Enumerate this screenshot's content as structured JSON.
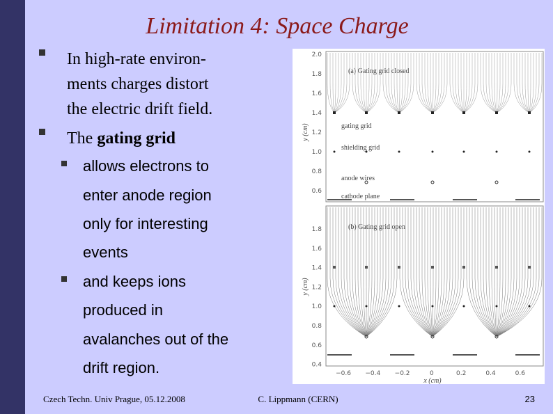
{
  "header": {
    "title": "Limitation 4: Space Charge"
  },
  "bullets": [
    {
      "lines": [
        "In high-rate environ-",
        "ments charges distort",
        "the electric drift field."
      ]
    },
    {
      "text": "The",
      "bold": "gating grid"
    }
  ],
  "sub_bullets": [
    {
      "lines": [
        "allows electrons to",
        "enter anode region",
        "only for interesting",
        "events"
      ]
    },
    {
      "lines": [
        "and keeps ions",
        "produced in",
        "avalanches out of the",
        "drift region."
      ]
    }
  ],
  "figure": {
    "panel_a": {
      "label": "(a) Gating grid closed",
      "annotations": [
        "gating grid",
        "shielding grid",
        "anode wires",
        "cathode plane"
      ],
      "yticks": [
        "2.0",
        "1.8",
        "1.6",
        "1.4",
        "1.2",
        "1.0",
        "0.8",
        "0.6"
      ]
    },
    "panel_b": {
      "label": "(b) Gating grid open",
      "yticks": [
        "1.8",
        "1.6",
        "1.4",
        "1.2",
        "1.0",
        "0.8",
        "0.6",
        "0.4"
      ]
    },
    "y_label": "y (cm)",
    "x_label": "x (cm)",
    "xticks": [
      "−0.6",
      "−0.4",
      "−0.2",
      "0",
      "0.2",
      "0.4",
      "0.6"
    ]
  },
  "footer": {
    "left": "Czech Techn. Univ Prague, 05.12.2008",
    "center": "C. Lippmann (CERN)",
    "page": "23"
  }
}
